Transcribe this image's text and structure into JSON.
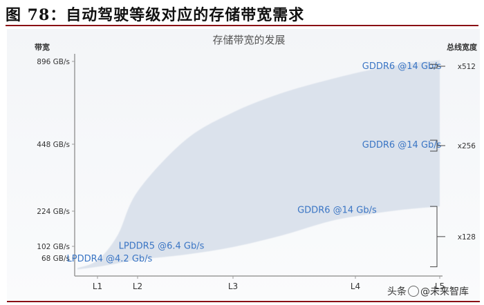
{
  "figure_title": "图 78：自动驾驶等级对应的存储带宽需求",
  "watermark": {
    "text_before_icon": "头条",
    "text_after_icon": "@未来智库"
  },
  "colors": {
    "area": "#dbe2ec",
    "label_blue": "#3a75c4",
    "axis": "#9a9a9a",
    "title_red": "#8a0f14"
  },
  "chart_data": {
    "type": "area",
    "title": "存储带宽的发展",
    "ylabel": "带宽",
    "right_label": "总线宽度",
    "y_ticks": [
      {
        "label": "896 GB/s",
        "value": 896
      },
      {
        "label": "448 GB/s",
        "value": 448
      },
      {
        "label": "224 GB/s",
        "value": 224
      },
      {
        "label": "102 GB/s",
        "value": 102
      },
      {
        "label": "68 GB/s",
        "value": 68
      }
    ],
    "x_categories": [
      "L1",
      "L2",
      "L3",
      "L4",
      "L5"
    ],
    "area_upper": [
      [
        0.2,
        30
      ],
      [
        1.0,
        60
      ],
      [
        1.5,
        140
      ],
      [
        2.0,
        290
      ],
      [
        2.5,
        470
      ],
      [
        3.0,
        620
      ],
      [
        3.4,
        725
      ],
      [
        3.8,
        800
      ],
      [
        4.2,
        852
      ],
      [
        4.6,
        882
      ],
      [
        5.0,
        903
      ]
    ],
    "area_lower": [
      [
        5.0,
        240
      ],
      [
        4.6,
        230
      ],
      [
        4.2,
        215
      ],
      [
        3.8,
        190
      ],
      [
        3.4,
        140
      ],
      [
        3.0,
        100
      ],
      [
        2.5,
        78
      ],
      [
        2.0,
        62
      ],
      [
        1.5,
        48
      ],
      [
        1.0,
        35
      ],
      [
        0.2,
        25
      ]
    ],
    "annotations": [
      {
        "text": "GDDR6 @14 Gb/s",
        "x": 4.55,
        "y": 873
      },
      {
        "text": "GDDR6 @14 Gb/s",
        "x": 4.55,
        "y": 448
      },
      {
        "text": "GDDR6 @14 Gb/s",
        "x": 3.85,
        "y": 230
      },
      {
        "text": "LPDDR5 @6.4 Gb/s",
        "x": 2.25,
        "y": 105
      },
      {
        "text": "LPDDR4 @4.2 Gb/s",
        "x": 1.3,
        "y": 68
      }
    ],
    "bus_widths": [
      {
        "label": "x512",
        "y_top": 880,
        "y_bottom": 860
      },
      {
        "label": "x256",
        "y_top": 470,
        "y_bottom": 425
      },
      {
        "label": "x128",
        "y_top": 240,
        "y_bottom": 35
      }
    ]
  }
}
